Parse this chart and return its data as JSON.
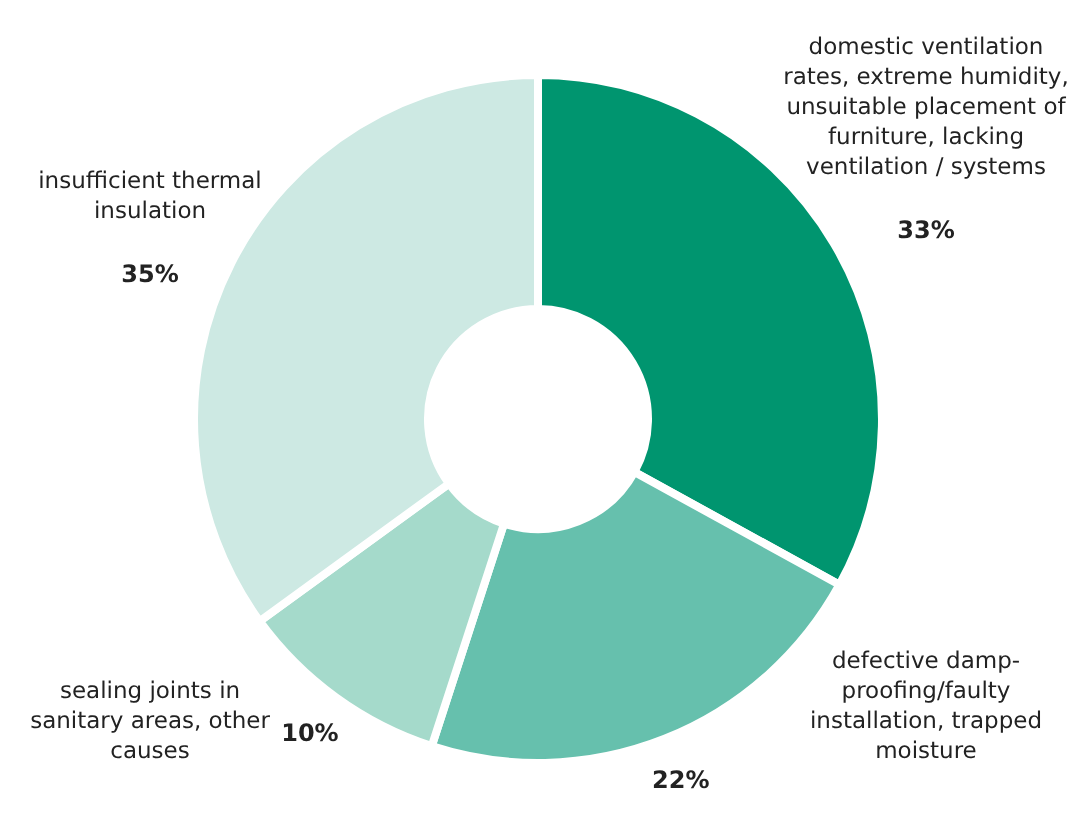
{
  "chart_data": {
    "type": "donut",
    "categories": [
      "domestic ventilation rates, extreme humidity, unsuitable placement of furniture, lacking ventilation / systems",
      "defective damp-proofing/faulty installation, trapped moisture",
      "sealing joints in sanitary areas, other causes",
      "insufficient thermal insulation"
    ],
    "values": [
      33,
      22,
      10,
      35
    ],
    "value_labels": [
      "33%",
      "22%",
      "10%",
      "35%"
    ],
    "colors": [
      "#00956f",
      "#66c0ad",
      "#a5dacb",
      "#cde9e3"
    ]
  }
}
